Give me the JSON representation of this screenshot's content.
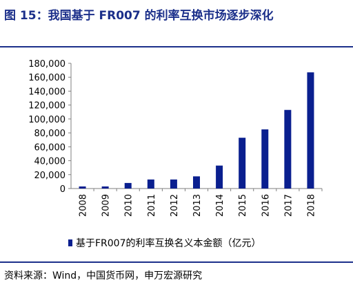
{
  "title": "图 15：我国基于 FR007 的利率互换市场逐步深化",
  "source": "资料来源：Wind，中国货币网，申万宏源研究",
  "colors": {
    "accent": "#1b2f8a",
    "bar": "#0a1f8f",
    "axis": "#7f7f7f"
  },
  "chart_data": {
    "type": "bar",
    "categories": [
      "2008",
      "2009",
      "2010",
      "2011",
      "2012",
      "2013",
      "2014",
      "2015",
      "2016",
      "2017",
      "2018"
    ],
    "series": [
      {
        "name": "基于FR007的利率互换名义本金额（亿元）",
        "values": [
          3000,
          3000,
          8000,
          13000,
          13000,
          17500,
          33000,
          73000,
          85000,
          113000,
          167000
        ]
      }
    ],
    "yticks": [
      "0",
      "20,000",
      "40,000",
      "60,000",
      "80,000",
      "100,000",
      "120,000",
      "140,000",
      "160,000",
      "180,000"
    ],
    "ylim": [
      0,
      180000
    ],
    "legend_position": "bottom",
    "grid": false
  }
}
